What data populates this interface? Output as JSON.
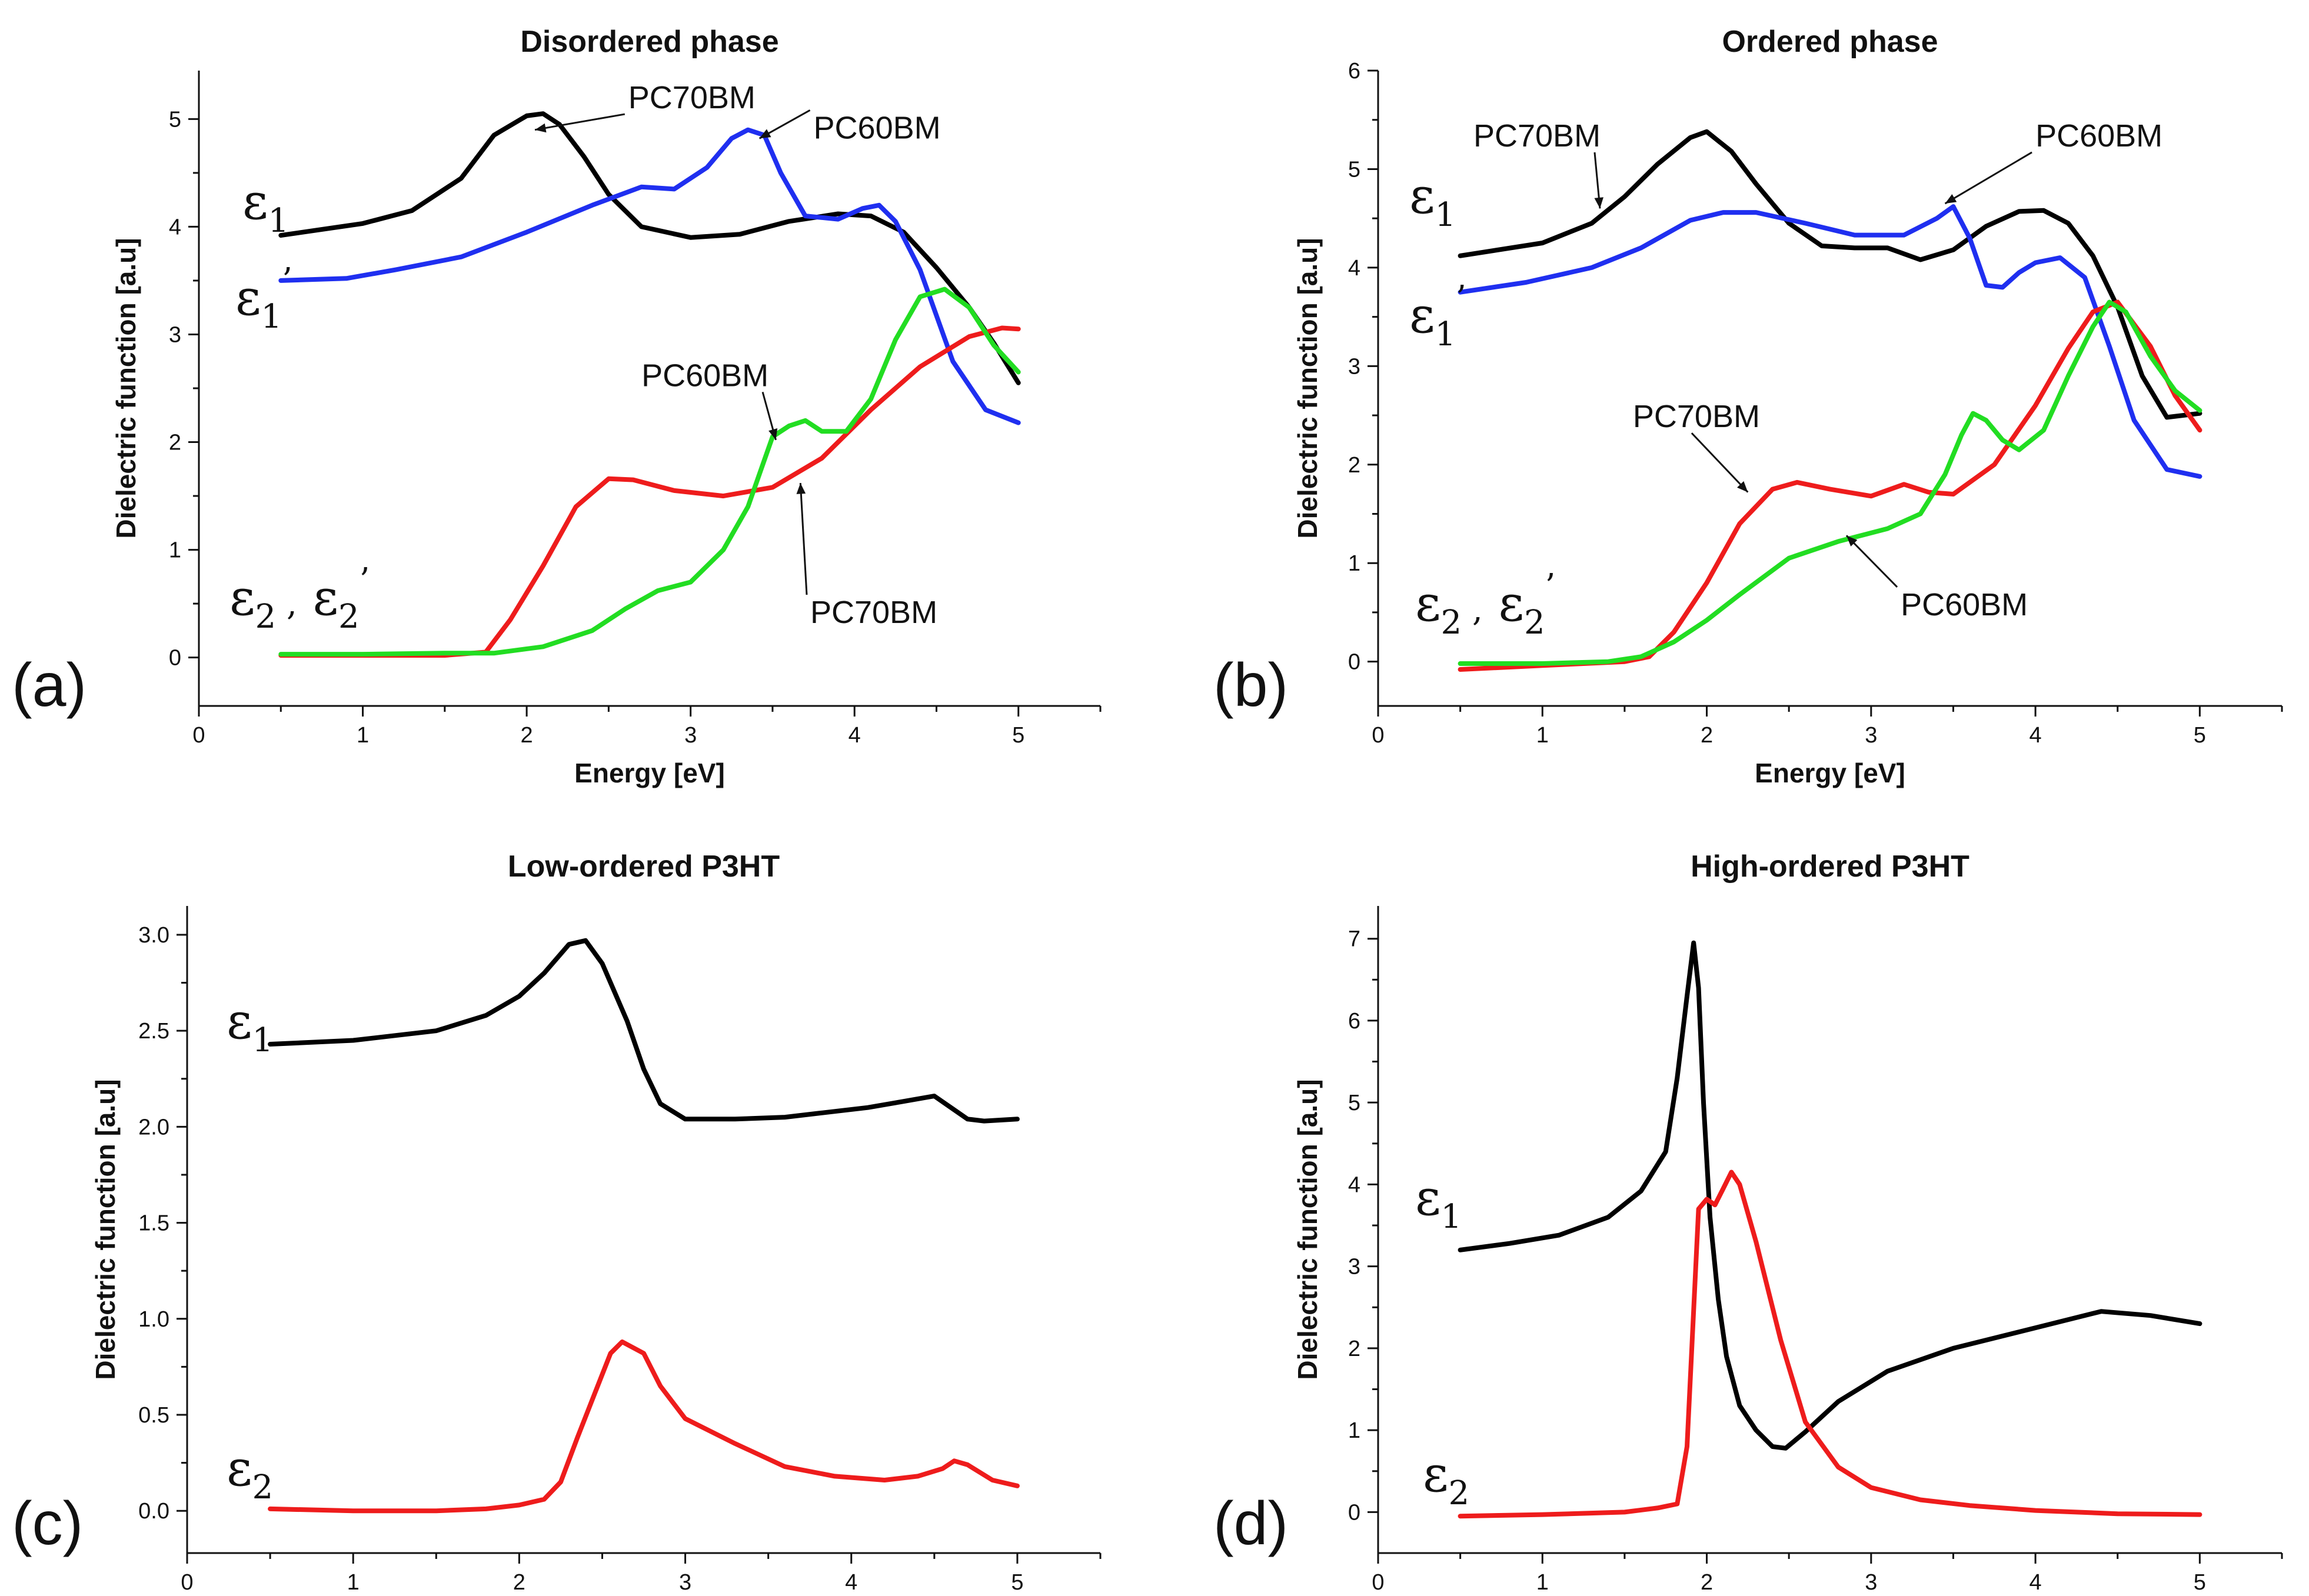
{
  "chart_data": [
    {
      "type": "line",
      "panel_label": "(a)",
      "title": "Disordered phase",
      "xlabel": "Energy [eV]",
      "ylabel": "Dielectric function [a.u]",
      "xlim": [
        0,
        5.5
      ],
      "ylim": [
        -0.45,
        5.45
      ],
      "xticks": [
        0,
        1,
        2,
        3,
        4,
        5
      ],
      "yticks": [
        0,
        1,
        2,
        3,
        4,
        5
      ],
      "curve_labels": [
        {
          "base": "ε",
          "sub": "1",
          "sup": ""
        },
        {
          "base": "ε",
          "sub": "1",
          "sup": "’"
        },
        {
          "base": "ε",
          "sub": "2",
          "sup": "",
          "second_base": "ε",
          "second_sub": "2",
          "second_sup": "’",
          "separator": " ,"
        }
      ],
      "annotations": [
        {
          "text": "PC70BM",
          "x": 2.62,
          "y": 5.1,
          "to": [
            2.05,
            4.9
          ]
        },
        {
          "text": "PC60BM",
          "x": 3.75,
          "y": 4.82,
          "to": [
            3.42,
            4.82
          ]
        },
        {
          "text": "PC60BM",
          "x": 2.7,
          "y": 2.52,
          "to": [
            3.52,
            2.02
          ]
        },
        {
          "text": "PC70BM",
          "x": 3.73,
          "y": 0.32,
          "to": [
            3.67,
            1.62
          ]
        }
      ],
      "series": [
        {
          "name": "ε1 PC70BM",
          "color": "#000000",
          "x": [
            0.5,
            1.0,
            1.3,
            1.6,
            1.8,
            2.0,
            2.1,
            2.2,
            2.35,
            2.5,
            2.7,
            3.0,
            3.3,
            3.6,
            3.9,
            4.1,
            4.3,
            4.5,
            4.7,
            4.85,
            5.0
          ],
          "y": [
            3.92,
            4.03,
            4.15,
            4.45,
            4.85,
            5.03,
            5.05,
            4.95,
            4.65,
            4.3,
            4.0,
            3.9,
            3.93,
            4.05,
            4.12,
            4.1,
            3.95,
            3.62,
            3.25,
            2.92,
            2.55
          ]
        },
        {
          "name": "ε1' PC60BM",
          "color": "#1f2ff0",
          "x": [
            0.5,
            0.9,
            1.2,
            1.6,
            2.0,
            2.4,
            2.7,
            2.9,
            3.1,
            3.25,
            3.35,
            3.45,
            3.55,
            3.7,
            3.9,
            4.05,
            4.15,
            4.25,
            4.4,
            4.6,
            4.8,
            5.0
          ],
          "y": [
            3.5,
            3.52,
            3.6,
            3.72,
            3.95,
            4.2,
            4.37,
            4.35,
            4.55,
            4.82,
            4.9,
            4.85,
            4.5,
            4.1,
            4.07,
            4.17,
            4.2,
            4.05,
            3.6,
            2.75,
            2.3,
            2.18
          ]
        },
        {
          "name": "ε2 PC70BM",
          "color": "#ee1c1c",
          "x": [
            0.5,
            1.0,
            1.5,
            1.75,
            1.9,
            2.1,
            2.3,
            2.5,
            2.65,
            2.9,
            3.2,
            3.5,
            3.8,
            4.1,
            4.4,
            4.7,
            4.9,
            5.0
          ],
          "y": [
            0.02,
            0.02,
            0.02,
            0.05,
            0.35,
            0.85,
            1.4,
            1.66,
            1.65,
            1.55,
            1.5,
            1.58,
            1.85,
            2.3,
            2.7,
            2.98,
            3.06,
            3.05
          ]
        },
        {
          "name": "ε2' PC60BM",
          "color": "#22dd22",
          "x": [
            0.5,
            1.0,
            1.5,
            1.8,
            2.1,
            2.4,
            2.6,
            2.8,
            3.0,
            3.2,
            3.35,
            3.5,
            3.6,
            3.7,
            3.8,
            3.95,
            4.1,
            4.25,
            4.4,
            4.55,
            4.7,
            4.85,
            5.0
          ],
          "y": [
            0.03,
            0.03,
            0.04,
            0.04,
            0.1,
            0.25,
            0.45,
            0.62,
            0.7,
            1.0,
            1.4,
            2.05,
            2.15,
            2.2,
            2.1,
            2.1,
            2.4,
            2.95,
            3.35,
            3.42,
            3.25,
            2.9,
            2.65
          ]
        }
      ]
    },
    {
      "type": "line",
      "panel_label": "(b)",
      "title": "Ordered phase",
      "xlabel": "Energy [eV]",
      "ylabel": "Dielectric function [a.u]",
      "xlim": [
        0,
        5.5
      ],
      "ylim": [
        -0.45,
        6
      ],
      "xticks": [
        0,
        1,
        2,
        3,
        4,
        5
      ],
      "yticks": [
        0,
        1,
        2,
        3,
        4,
        5,
        6
      ],
      "curve_labels": [
        {
          "base": "ε",
          "sub": "1",
          "sup": ""
        },
        {
          "base": "ε",
          "sub": "1",
          "sup": "’"
        },
        {
          "base": "ε",
          "sub": "2",
          "sup": "",
          "second_base": "ε",
          "second_sub": "2",
          "second_sup": "’",
          "separator": " ,"
        }
      ],
      "annotations": [
        {
          "text": "PC70BM",
          "x": 0.58,
          "y": 5.23,
          "to": [
            1.35,
            4.6
          ]
        },
        {
          "text": "PC60BM",
          "x": 4.0,
          "y": 5.23,
          "to": [
            3.45,
            4.65
          ]
        },
        {
          "text": "PC70BM",
          "x": 1.55,
          "y": 2.38,
          "to": [
            2.25,
            1.72
          ]
        },
        {
          "text": "PC60BM",
          "x": 3.18,
          "y": 0.47,
          "to": [
            2.85,
            1.28
          ]
        }
      ],
      "series": [
        {
          "name": "ε1 PC70BM",
          "color": "#000000",
          "x": [
            0.5,
            1.0,
            1.3,
            1.5,
            1.7,
            1.9,
            2.0,
            2.15,
            2.3,
            2.5,
            2.7,
            2.9,
            3.1,
            3.3,
            3.5,
            3.7,
            3.9,
            4.05,
            4.2,
            4.35,
            4.5,
            4.65,
            4.8,
            5.0
          ],
          "y": [
            4.12,
            4.25,
            4.45,
            4.72,
            5.05,
            5.32,
            5.38,
            5.18,
            4.85,
            4.45,
            4.22,
            4.2,
            4.2,
            4.08,
            4.18,
            4.42,
            4.57,
            4.58,
            4.45,
            4.12,
            3.6,
            2.9,
            2.48,
            2.52
          ]
        },
        {
          "name": "ε1' PC60BM",
          "color": "#1f2ff0",
          "x": [
            0.5,
            0.9,
            1.3,
            1.6,
            1.9,
            2.1,
            2.3,
            2.6,
            2.9,
            3.2,
            3.4,
            3.5,
            3.6,
            3.7,
            3.8,
            3.9,
            4.0,
            4.15,
            4.3,
            4.45,
            4.6,
            4.8,
            5.0
          ],
          "y": [
            3.75,
            3.85,
            4.0,
            4.2,
            4.48,
            4.56,
            4.56,
            4.45,
            4.33,
            4.33,
            4.5,
            4.62,
            4.3,
            3.82,
            3.8,
            3.95,
            4.05,
            4.1,
            3.9,
            3.2,
            2.45,
            1.95,
            1.88
          ]
        },
        {
          "name": "ε2 PC70BM",
          "color": "#ee1c1c",
          "x": [
            0.5,
            1.0,
            1.5,
            1.65,
            1.8,
            2.0,
            2.2,
            2.4,
            2.55,
            2.75,
            3.0,
            3.2,
            3.35,
            3.5,
            3.75,
            4.0,
            4.2,
            4.35,
            4.5,
            4.7,
            4.85,
            5.0
          ],
          "y": [
            -0.08,
            -0.04,
            0.0,
            0.05,
            0.3,
            0.8,
            1.4,
            1.75,
            1.82,
            1.75,
            1.68,
            1.8,
            1.72,
            1.7,
            2.0,
            2.6,
            3.18,
            3.55,
            3.65,
            3.2,
            2.7,
            2.35
          ]
        },
        {
          "name": "ε2' PC60BM",
          "color": "#22dd22",
          "x": [
            0.5,
            1.0,
            1.4,
            1.6,
            1.8,
            2.0,
            2.2,
            2.5,
            2.8,
            3.1,
            3.3,
            3.45,
            3.55,
            3.62,
            3.7,
            3.8,
            3.9,
            4.05,
            4.2,
            4.35,
            4.45,
            4.55,
            4.7,
            4.85,
            5.0
          ],
          "y": [
            -0.02,
            -0.02,
            0.0,
            0.05,
            0.2,
            0.42,
            0.68,
            1.05,
            1.22,
            1.35,
            1.5,
            1.9,
            2.3,
            2.52,
            2.45,
            2.25,
            2.15,
            2.35,
            2.9,
            3.4,
            3.65,
            3.55,
            3.1,
            2.75,
            2.55
          ]
        }
      ]
    },
    {
      "type": "line",
      "panel_label": "(c)",
      "title": "Low-ordered P3HT",
      "xlabel": "",
      "ylabel": "Dielectric function [a.u]",
      "xlim": [
        0,
        5.5
      ],
      "ylim": [
        -0.22,
        3.15
      ],
      "xticks": [
        0,
        1,
        2,
        3,
        4,
        5
      ],
      "yticks": [
        0.0,
        0.5,
        1.0,
        1.5,
        2.0,
        2.5,
        3.0
      ],
      "ytick_labels": [
        "0.0",
        "0.5",
        "1.0",
        "1.5",
        "2.0",
        "2.5",
        "3.0"
      ],
      "curve_labels": [
        {
          "base": "ε",
          "sub": "1",
          "sup": ""
        },
        {
          "base": "ε",
          "sub": "2",
          "sup": ""
        }
      ],
      "annotations": [],
      "series": [
        {
          "name": "ε1",
          "color": "#000000",
          "x": [
            0.5,
            1.0,
            1.5,
            1.8,
            2.0,
            2.15,
            2.3,
            2.4,
            2.5,
            2.65,
            2.75,
            2.85,
            3.0,
            3.3,
            3.6,
            3.8,
            4.1,
            4.3,
            4.5,
            4.6,
            4.7,
            4.8,
            5.0
          ],
          "y": [
            2.43,
            2.45,
            2.5,
            2.58,
            2.68,
            2.8,
            2.95,
            2.97,
            2.85,
            2.55,
            2.3,
            2.12,
            2.04,
            2.04,
            2.05,
            2.07,
            2.1,
            2.13,
            2.16,
            2.1,
            2.04,
            2.03,
            2.04
          ]
        },
        {
          "name": "ε2",
          "color": "#ee1c1c",
          "x": [
            0.5,
            1.0,
            1.5,
            1.8,
            2.0,
            2.15,
            2.25,
            2.35,
            2.45,
            2.55,
            2.62,
            2.75,
            2.85,
            3.0,
            3.3,
            3.6,
            3.9,
            4.2,
            4.4,
            4.55,
            4.62,
            4.7,
            4.85,
            5.0
          ],
          "y": [
            0.01,
            0.0,
            0.0,
            0.01,
            0.03,
            0.06,
            0.15,
            0.38,
            0.6,
            0.82,
            0.88,
            0.82,
            0.65,
            0.48,
            0.35,
            0.23,
            0.18,
            0.16,
            0.18,
            0.22,
            0.26,
            0.24,
            0.16,
            0.13
          ]
        }
      ]
    },
    {
      "type": "line",
      "panel_label": "(d)",
      "title": "High-ordered P3HT",
      "xlabel": "",
      "ylabel": "Dielectric function [a.u]",
      "xlim": [
        0,
        5.5
      ],
      "ylim": [
        -0.5,
        7.4
      ],
      "xticks": [
        0,
        1,
        2,
        3,
        4,
        5
      ],
      "yticks": [
        0,
        1,
        2,
        3,
        4,
        5,
        6,
        7
      ],
      "curve_labels": [
        {
          "base": "ε",
          "sub": "1",
          "sup": ""
        },
        {
          "base": "ε",
          "sub": "2",
          "sup": ""
        }
      ],
      "annotations": [],
      "series": [
        {
          "name": "ε1",
          "color": "#000000",
          "x": [
            0.5,
            0.8,
            1.1,
            1.4,
            1.6,
            1.75,
            1.82,
            1.88,
            1.92,
            1.95,
            1.98,
            2.02,
            2.07,
            2.12,
            2.2,
            2.3,
            2.4,
            2.48,
            2.6,
            2.8,
            3.1,
            3.5,
            4.0,
            4.4,
            4.7,
            5.0
          ],
          "y": [
            3.2,
            3.28,
            3.38,
            3.6,
            3.92,
            4.4,
            5.3,
            6.3,
            6.95,
            6.4,
            5.0,
            3.6,
            2.6,
            1.9,
            1.3,
            1.0,
            0.8,
            0.78,
            0.98,
            1.35,
            1.72,
            2.0,
            2.25,
            2.45,
            2.4,
            2.3
          ]
        },
        {
          "name": "ε2",
          "color": "#ee1c1c",
          "x": [
            0.5,
            1.0,
            1.5,
            1.7,
            1.82,
            1.88,
            1.95,
            2.0,
            2.05,
            2.1,
            2.15,
            2.2,
            2.3,
            2.45,
            2.6,
            2.8,
            3.0,
            3.3,
            3.6,
            4.0,
            4.5,
            5.0
          ],
          "y": [
            -0.05,
            -0.03,
            0.0,
            0.05,
            0.1,
            0.8,
            3.7,
            3.82,
            3.75,
            3.95,
            4.15,
            4.0,
            3.3,
            2.1,
            1.1,
            0.55,
            0.3,
            0.15,
            0.08,
            0.02,
            -0.02,
            -0.03
          ]
        }
      ]
    }
  ]
}
